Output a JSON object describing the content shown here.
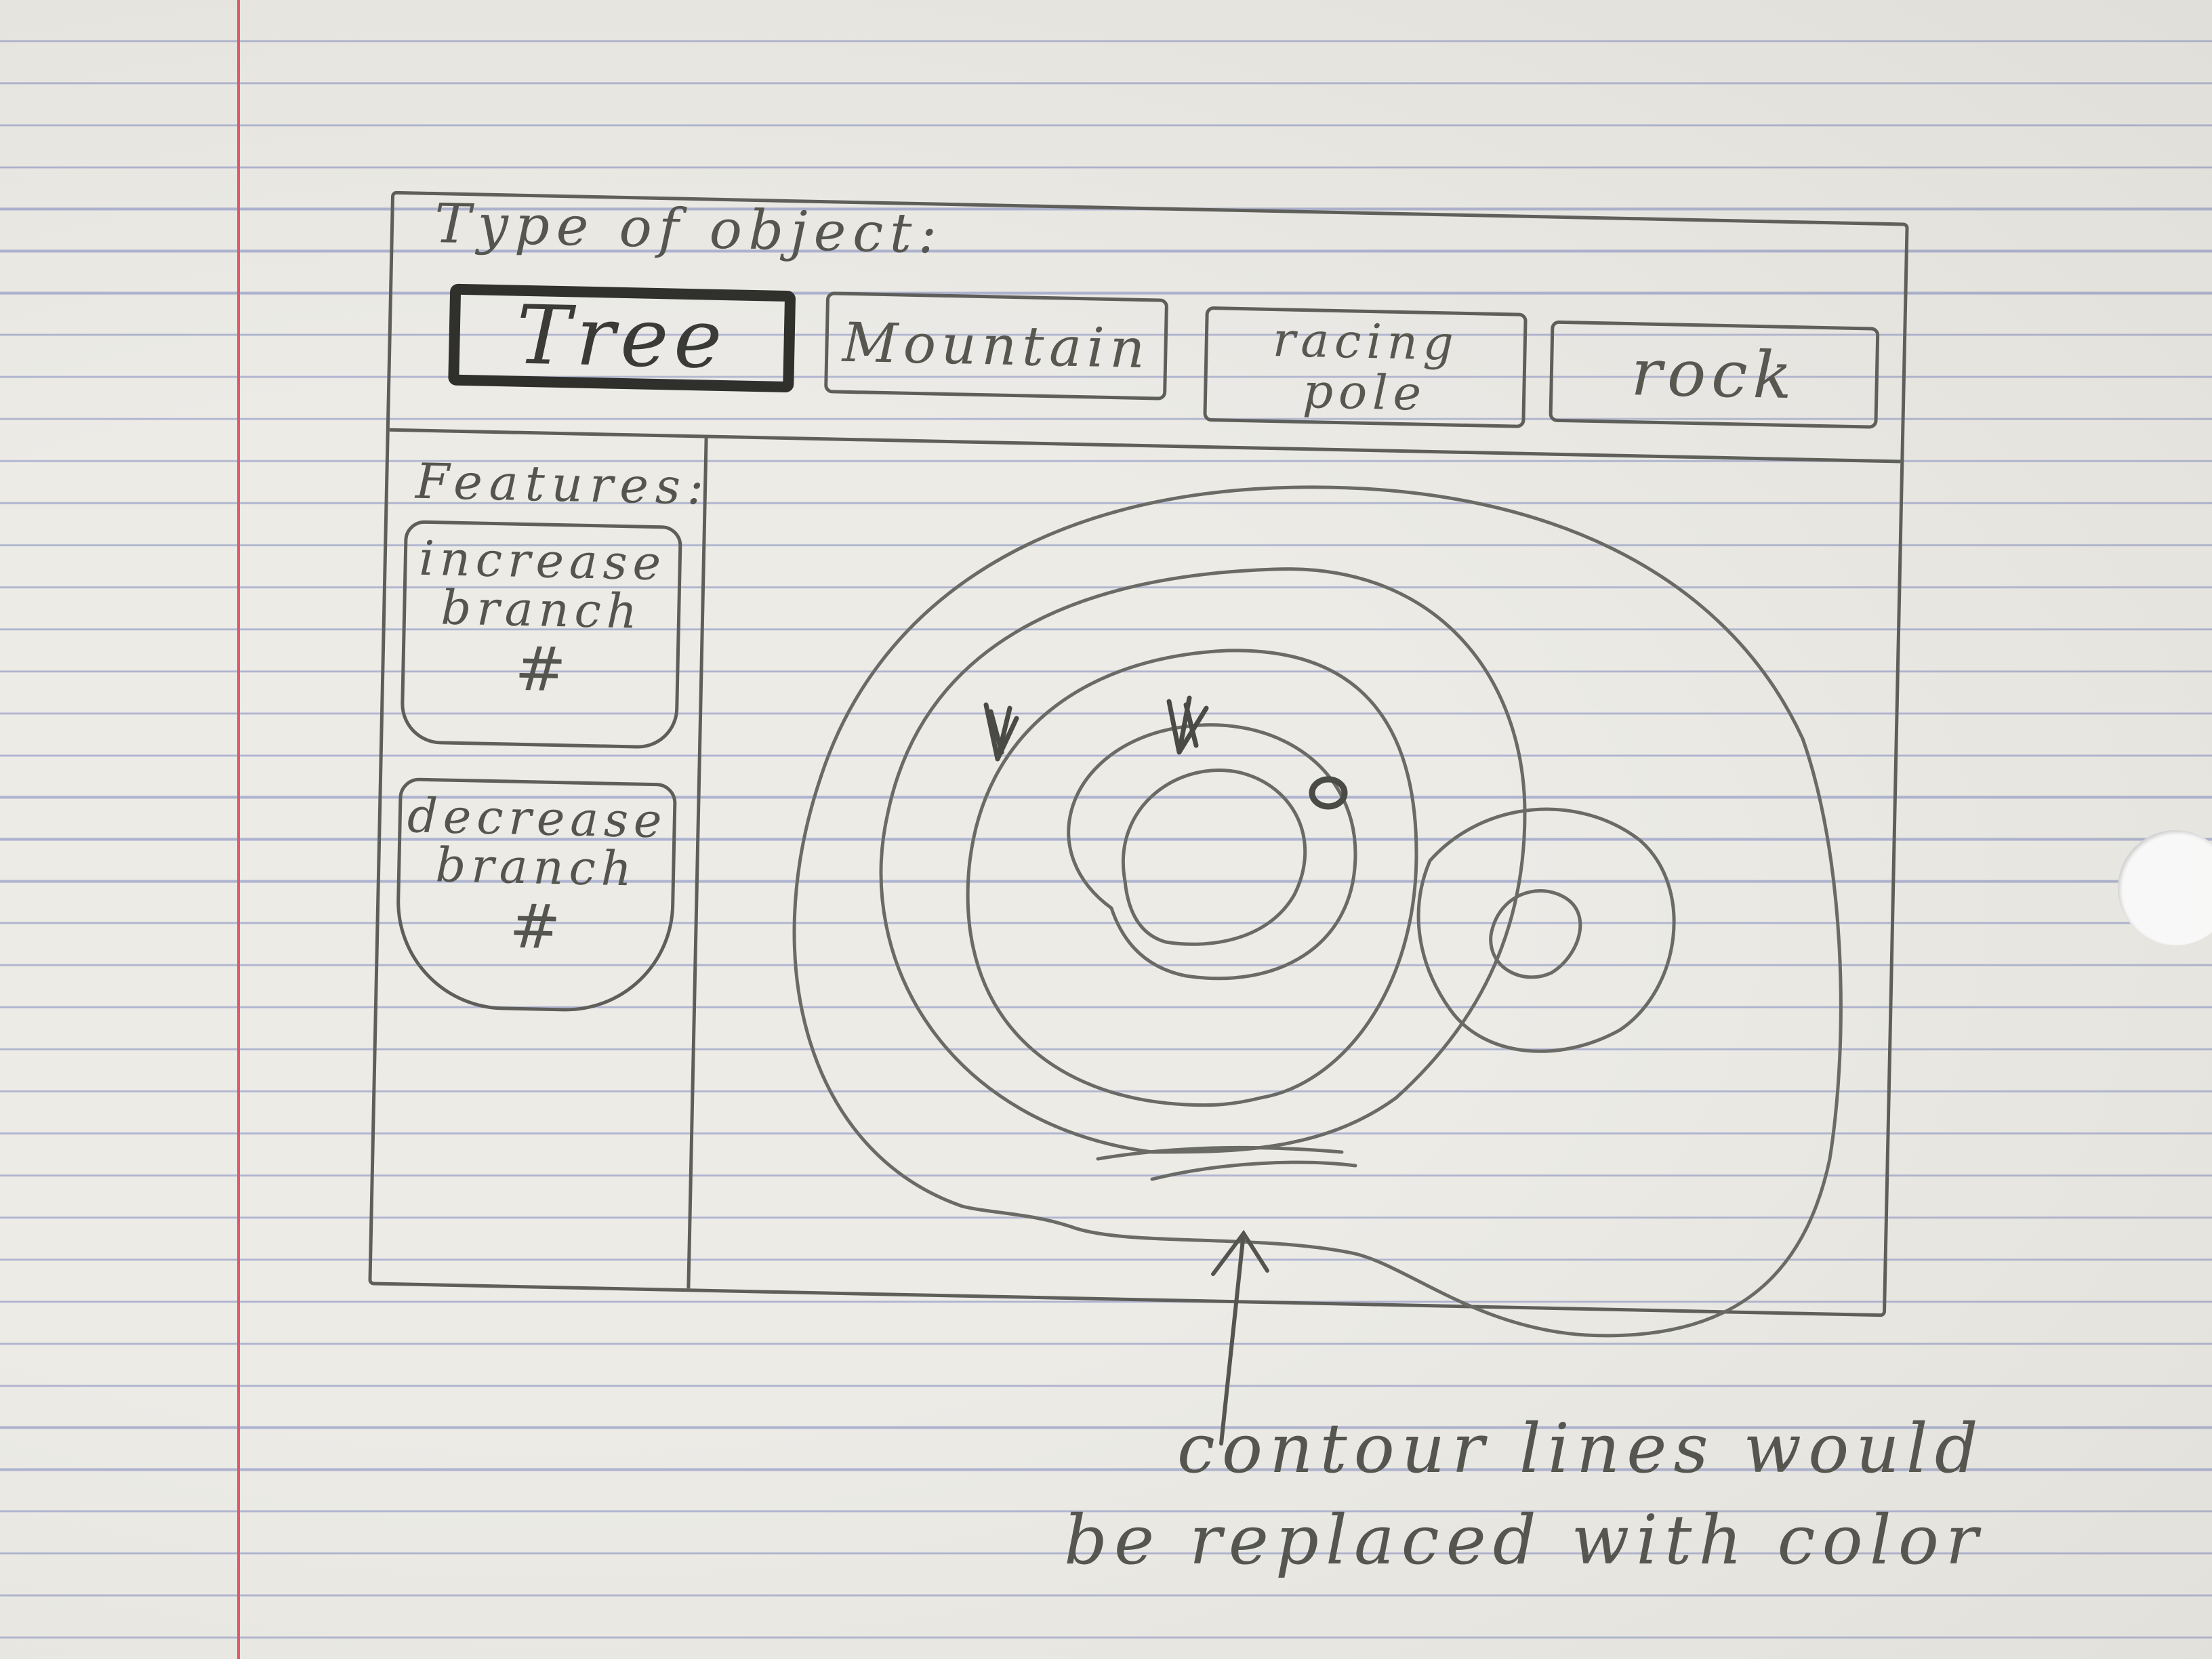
{
  "type_selector": {
    "label": "Type of object:",
    "options": [
      {
        "label": "Tree",
        "selected": true
      },
      {
        "label": "Mountain",
        "selected": false
      },
      {
        "label": "racing\npole",
        "selected": false
      },
      {
        "label": "rock",
        "selected": false
      }
    ]
  },
  "features_panel": {
    "label": "Features:",
    "items": [
      {
        "label": "increase\nbranch",
        "symbol": "#"
      },
      {
        "label": "decrease\nbranch",
        "symbol": "#"
      }
    ]
  },
  "map": {
    "content": "contour map",
    "markers": [
      "tree-icon",
      "tree-icon",
      "rock-icon"
    ]
  },
  "annotation": {
    "text": "contour lines would\nbe replaced with color"
  },
  "colors": {
    "pencil": "#5e5e5a",
    "paper": "#ecebe6",
    "rule_lines": "#aeb3cf",
    "margin": "#e3586a"
  }
}
